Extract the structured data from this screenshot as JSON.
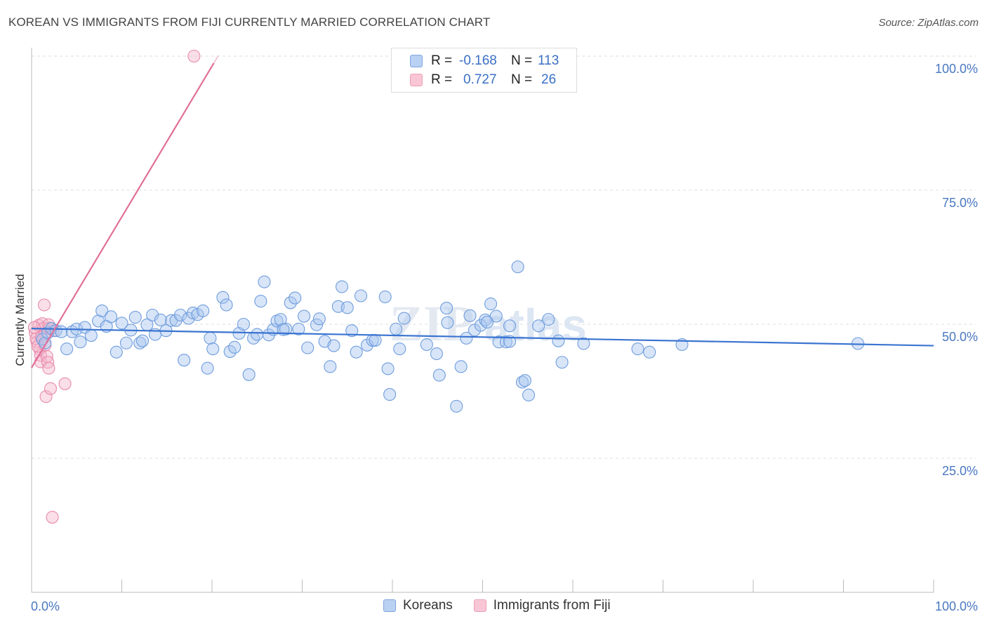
{
  "header": {
    "title": "KOREAN VS IMMIGRANTS FROM FIJI CURRENTLY MARRIED CORRELATION CHART",
    "source": "Source: ZipAtlas.com"
  },
  "legend": {
    "rows": [
      {
        "r_label": "R =",
        "r_value": "-0.168",
        "n_label": "N =",
        "n_value": "113"
      },
      {
        "r_label": "R =",
        "r_value": "0.727",
        "n_label": "N =",
        "n_value": "26"
      }
    ]
  },
  "colors": {
    "koreans": "#3a74d1",
    "koreans_fill": "#a8c6ef",
    "fiji": "#e07098",
    "fiji_fill": "#f5b8cb",
    "tick": "#4a78c2"
  },
  "chart_data": {
    "type": "scatter",
    "title": "KOREAN VS IMMIGRANTS FROM FIJI CURRENTLY MARRIED CORRELATION CHART",
    "ylabel": "Currently Married",
    "xlabel": "",
    "x_tick_labels": [
      "0.0%",
      "100.0%"
    ],
    "y_tick_labels": [
      "25.0%",
      "50.0%",
      "75.0%",
      "100.0%"
    ],
    "y_ticks": [
      25,
      50,
      75,
      100
    ],
    "xlim": [
      0,
      100
    ],
    "ylim": [
      0,
      100
    ],
    "grid": "horizontal dashed",
    "series": [
      {
        "name": "Koreans",
        "color": "#3a74d1",
        "points": [
          [
            1.2,
            47.2
          ],
          [
            1.5,
            46.5
          ],
          [
            1.8,
            48.4
          ],
          [
            2.2,
            49.2
          ],
          [
            2.7,
            48.8
          ],
          [
            3.3,
            48.6
          ],
          [
            3.9,
            45.4
          ],
          [
            4.5,
            48.6
          ],
          [
            5.0,
            49.1
          ],
          [
            5.4,
            46.7
          ],
          [
            5.9,
            49.4
          ],
          [
            6.6,
            47.9
          ],
          [
            7.4,
            50.6
          ],
          [
            7.8,
            52.5
          ],
          [
            8.3,
            49.6
          ],
          [
            8.8,
            51.4
          ],
          [
            9.4,
            44.8
          ],
          [
            10.0,
            50.2
          ],
          [
            10.5,
            46.5
          ],
          [
            11.0,
            48.9
          ],
          [
            11.5,
            51.3
          ],
          [
            12.0,
            46.5
          ],
          [
            12.3,
            46.9
          ],
          [
            12.8,
            49.9
          ],
          [
            13.4,
            51.7
          ],
          [
            13.7,
            48.1
          ],
          [
            14.3,
            50.8
          ],
          [
            14.9,
            48.8
          ],
          [
            15.5,
            50.7
          ],
          [
            16.0,
            50.7
          ],
          [
            16.5,
            51.7
          ],
          [
            16.9,
            43.3
          ],
          [
            17.4,
            51.1
          ],
          [
            17.9,
            52.1
          ],
          [
            18.4,
            51.8
          ],
          [
            19.0,
            52.5
          ],
          [
            19.5,
            41.8
          ],
          [
            19.8,
            47.4
          ],
          [
            20.1,
            45.4
          ],
          [
            21.2,
            55.0
          ],
          [
            21.6,
            53.6
          ],
          [
            22.0,
            44.9
          ],
          [
            22.5,
            45.7
          ],
          [
            23.0,
            48.3
          ],
          [
            23.5,
            50.0
          ],
          [
            24.1,
            40.6
          ],
          [
            24.6,
            47.4
          ],
          [
            25.0,
            48.1
          ],
          [
            25.4,
            54.3
          ],
          [
            25.8,
            57.9
          ],
          [
            26.3,
            48.0
          ],
          [
            26.8,
            49.0
          ],
          [
            27.2,
            50.6
          ],
          [
            27.6,
            50.9
          ],
          [
            28.2,
            49.1
          ],
          [
            28.7,
            54.0
          ],
          [
            29.2,
            54.9
          ],
          [
            29.6,
            49.1
          ],
          [
            30.2,
            51.5
          ],
          [
            30.6,
            45.6
          ],
          [
            31.6,
            49.9
          ],
          [
            31.9,
            51.0
          ],
          [
            32.5,
            46.8
          ],
          [
            33.1,
            42.1
          ],
          [
            33.5,
            46.0
          ],
          [
            34.0,
            53.3
          ],
          [
            34.4,
            57.0
          ],
          [
            35.0,
            53.1
          ],
          [
            35.5,
            48.8
          ],
          [
            36.0,
            44.8
          ],
          [
            36.5,
            55.3
          ],
          [
            37.2,
            46.1
          ],
          [
            37.8,
            47.0
          ],
          [
            38.1,
            47.0
          ],
          [
            39.2,
            55.1
          ],
          [
            39.5,
            41.7
          ],
          [
            39.7,
            36.9
          ],
          [
            40.4,
            49.1
          ],
          [
            40.8,
            45.4
          ],
          [
            41.3,
            51.1
          ],
          [
            43.8,
            46.2
          ],
          [
            44.9,
            44.5
          ],
          [
            45.2,
            40.5
          ],
          [
            46.0,
            53.0
          ],
          [
            46.1,
            50.3
          ],
          [
            47.1,
            34.7
          ],
          [
            47.6,
            42.1
          ],
          [
            48.2,
            47.4
          ],
          [
            48.6,
            51.6
          ],
          [
            49.1,
            48.9
          ],
          [
            49.8,
            49.8
          ],
          [
            50.3,
            50.8
          ],
          [
            50.9,
            53.8
          ],
          [
            51.5,
            51.5
          ],
          [
            51.8,
            46.7
          ],
          [
            52.6,
            46.7
          ],
          [
            53.0,
            49.7
          ],
          [
            53.9,
            60.7
          ],
          [
            54.4,
            39.2
          ],
          [
            54.7,
            39.5
          ],
          [
            55.1,
            36.8
          ],
          [
            56.2,
            49.7
          ],
          [
            57.3,
            50.9
          ],
          [
            58.4,
            46.9
          ],
          [
            58.8,
            42.9
          ],
          [
            61.2,
            46.4
          ],
          [
            67.2,
            45.4
          ],
          [
            68.5,
            44.8
          ],
          [
            72.1,
            46.2
          ],
          [
            91.6,
            46.4
          ],
          [
            50.5,
            50.4
          ],
          [
            53.0,
            46.8
          ],
          [
            27.9,
            49.0
          ]
        ],
        "trend": [
          [
            0,
            49.2
          ],
          [
            100,
            46.0
          ]
        ]
      },
      {
        "name": "Immigrants from Fiji",
        "color": "#e07098",
        "points": [
          [
            0.4,
            48.4
          ],
          [
            0.6,
            46.7
          ],
          [
            0.8,
            49.8
          ],
          [
            0.9,
            45.3
          ],
          [
            1.0,
            44.2
          ],
          [
            1.0,
            43.0
          ],
          [
            1.2,
            50.1
          ],
          [
            1.3,
            49.2
          ],
          [
            1.4,
            53.6
          ],
          [
            1.5,
            48.2
          ],
          [
            1.6,
            36.5
          ],
          [
            1.7,
            44.0
          ],
          [
            1.8,
            42.9
          ],
          [
            1.9,
            41.8
          ],
          [
            2.0,
            49.3
          ],
          [
            2.1,
            38.0
          ],
          [
            2.3,
            14.0
          ],
          [
            3.7,
            38.9
          ],
          [
            18.0,
            100.0
          ],
          [
            0.5,
            47.3
          ],
          [
            1.1,
            47.6
          ],
          [
            0.7,
            45.9
          ],
          [
            2.4,
            48.8
          ],
          [
            1.9,
            49.9
          ],
          [
            0.3,
            49.4
          ],
          [
            1.5,
            46.1
          ]
        ],
        "trend": [
          [
            0,
            41.9
          ],
          [
            20.2,
            98.7
          ]
        ]
      }
    ]
  },
  "bottom_legend": {
    "koreans": "Koreans",
    "fiji": "Immigrants from Fiji"
  }
}
